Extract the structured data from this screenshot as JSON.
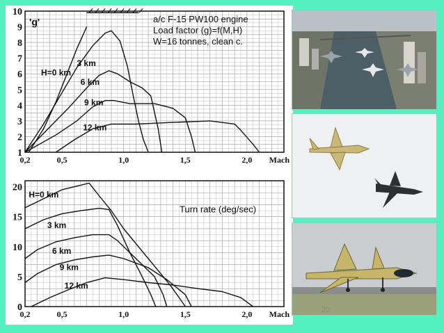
{
  "colors": {
    "background": "#55f0bf",
    "grid": "#999999",
    "ink": "#111111"
  },
  "page_number": "20",
  "photos": {
    "top": "jets-over-city-river-icon",
    "middle": "two-jets-in-sky-icon",
    "bottom": "jet-on-runway-icon"
  },
  "chart_data": [
    {
      "type": "line",
      "title": "a/c F-15 PW100 engine",
      "subtitle_lines": [
        "Load factor (g)=f(M,H)",
        "W=16 tonnes, clean c."
      ],
      "ylabel": "'g'",
      "xlabel": "Mach",
      "xlim": [
        0.2,
        2.3
      ],
      "ylim": [
        1,
        10
      ],
      "xticks": [
        {
          "value": 0.2,
          "label": "0,2"
        },
        {
          "value": 0.5,
          "label": "0,5"
        },
        {
          "value": 1.0,
          "label": "1,0"
        },
        {
          "value": 1.5,
          "label": "1,5"
        },
        {
          "value": 2.0,
          "label": "2,0"
        }
      ],
      "yticks": [
        1,
        2,
        3,
        4,
        5,
        6,
        7,
        8,
        9,
        10
      ],
      "grid": true,
      "series": [
        {
          "name": "H=0 km",
          "x": [
            0.23,
            0.35,
            0.45,
            0.55,
            0.62,
            0.7
          ],
          "y": [
            1,
            2.5,
            4.2,
            6.2,
            7.6,
            9
          ]
        },
        {
          "name": "3 km",
          "x": [
            0.2,
            0.35,
            0.5,
            0.62,
            0.75,
            0.85,
            0.9,
            0.97,
            1.03,
            1.08,
            1.12,
            1.16,
            1.2
          ],
          "y": [
            1,
            2.8,
            4.8,
            6.4,
            7.8,
            8.6,
            8.75,
            8.1,
            6.5,
            4.5,
            3,
            1.8,
            1
          ]
        },
        {
          "name": "6 km",
          "x": [
            0.2,
            0.4,
            0.55,
            0.7,
            0.8,
            0.88,
            0.95,
            1.05,
            1.15,
            1.22,
            1.28,
            1.31
          ],
          "y": [
            1,
            2.6,
            3.8,
            5.1,
            5.9,
            6.2,
            6,
            5.5,
            5.1,
            4.6,
            2.5,
            1
          ]
        },
        {
          "name": "9 km",
          "x": [
            0.2,
            0.45,
            0.62,
            0.75,
            0.85,
            0.92,
            1.05,
            1.25,
            1.4,
            1.5,
            1.55,
            1.58
          ],
          "y": [
            1,
            2.1,
            3,
            3.9,
            4.3,
            4.3,
            4.1,
            4.1,
            3.8,
            3.2,
            2,
            1
          ]
        },
        {
          "name": "12 km",
          "x": [
            0.45,
            0.6,
            0.75,
            0.9,
            1.1,
            1.4,
            1.7,
            1.9,
            1.95,
            2.05,
            2.1
          ],
          "y": [
            1,
            1.8,
            2.5,
            2.8,
            2.8,
            2.9,
            3,
            2.8,
            2.4,
            1.5,
            1
          ]
        }
      ]
    },
    {
      "type": "line",
      "title": "Turn rate (deg/sec)",
      "xlabel": "Mach",
      "xlim": [
        0.2,
        2.3
      ],
      "ylim": [
        0,
        21
      ],
      "xticks": [
        {
          "value": 0.2,
          "label": "0,2"
        },
        {
          "value": 0.5,
          "label": "0,5"
        },
        {
          "value": 1.0,
          "label": "1,0"
        },
        {
          "value": 1.5,
          "label": "1,5"
        },
        {
          "value": 2.0,
          "label": "2,0"
        }
      ],
      "yticks": [
        0,
        5,
        10,
        15,
        20
      ],
      "grid": true,
      "series": [
        {
          "name": "H=0 km",
          "x": [
            0.2,
            0.3,
            0.4,
            0.5,
            0.6,
            0.72,
            0.8,
            0.9,
            1.0,
            1.1,
            1.2,
            1.3,
            1.38,
            1.45,
            1.5
          ],
          "y": [
            16.5,
            17.5,
            18.5,
            19.5,
            20,
            20.6,
            18.5,
            16,
            13,
            10.5,
            8,
            5.5,
            3.5,
            1.5,
            0
          ]
        },
        {
          "name": "3 km",
          "x": [
            0.2,
            0.35,
            0.5,
            0.65,
            0.8,
            0.88,
            0.95,
            1.05,
            1.15,
            1.22,
            1.26
          ],
          "y": [
            13,
            14.5,
            15.5,
            16,
            16.4,
            16.2,
            13.5,
            9,
            5,
            2,
            0
          ]
        },
        {
          "name": "6 km",
          "x": [
            0.2,
            0.3,
            0.45,
            0.6,
            0.75,
            0.88,
            0.95,
            1.1,
            1.25,
            1.32,
            1.35
          ],
          "y": [
            8,
            9.5,
            10.8,
            11.5,
            12,
            12,
            11,
            8,
            5,
            2,
            0
          ]
        },
        {
          "name": "9 km",
          "x": [
            0.2,
            0.3,
            0.45,
            0.6,
            0.75,
            0.88,
            1.0,
            1.2,
            1.35,
            1.5,
            1.55
          ],
          "y": [
            4,
            5.5,
            7,
            7.8,
            8.3,
            8.6,
            8,
            6.5,
            4.5,
            2,
            0
          ]
        },
        {
          "name": "12 km",
          "x": [
            0.25,
            0.4,
            0.55,
            0.7,
            0.85,
            1.0,
            1.2,
            1.4,
            1.6,
            1.8,
            1.95,
            2.05
          ],
          "y": [
            0,
            1.5,
            2.8,
            4,
            4.8,
            4.5,
            4,
            3.6,
            3,
            2.5,
            1.5,
            0
          ]
        }
      ]
    }
  ]
}
